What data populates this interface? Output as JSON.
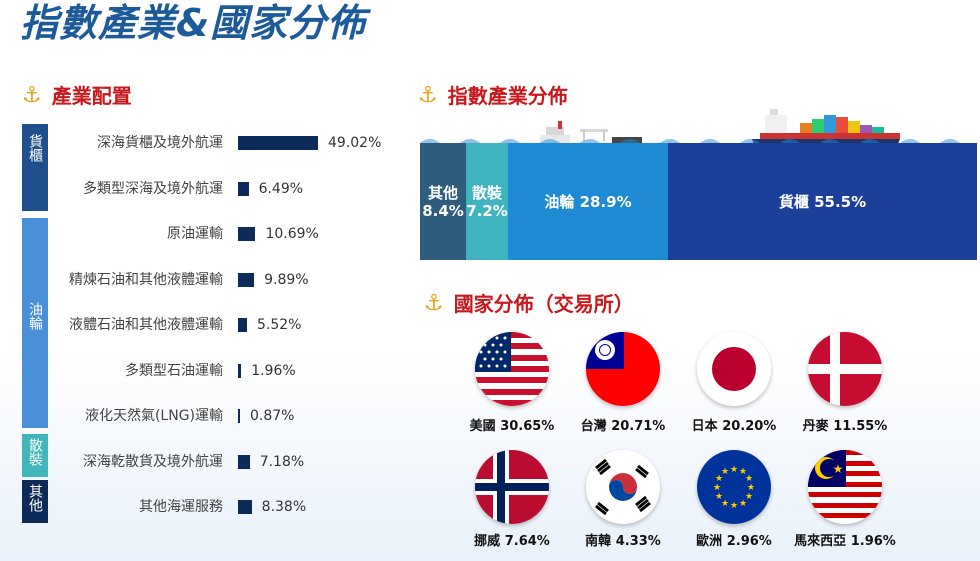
{
  "title": "指數產業&國家分佈",
  "industry_section": {
    "heading": "產業配置",
    "groups": [
      {
        "label": "貨櫃",
        "color": "#1f4f8c"
      },
      {
        "label": "油輪",
        "color": "#4a90d9"
      },
      {
        "label": "散裝",
        "color": "#40b5bc"
      },
      {
        "label": "其他",
        "color": "#0d2b59"
      }
    ],
    "rows": [
      {
        "label": "深海貨櫃及境外航運",
        "value": "49.02%",
        "pct": 49.02
      },
      {
        "label": "多類型深海及境外航運",
        "value": "6.49%",
        "pct": 6.49
      },
      {
        "label": "原油運輸",
        "value": "10.69%",
        "pct": 10.69
      },
      {
        "label": "精煉石油和其他液體運輸",
        "value": "9.89%",
        "pct": 9.89
      },
      {
        "label": "液體石油和其他液體運輸",
        "value": "5.52%",
        "pct": 5.52
      },
      {
        "label": "多類型石油運輸",
        "value": "1.96%",
        "pct": 1.96
      },
      {
        "label": "液化天然氣(LNG)運輸",
        "value": "0.87%",
        "pct": 0.87
      },
      {
        "label": "深海乾散貨及境外航運",
        "value": "7.18%",
        "pct": 7.18
      },
      {
        "label": "其他海運服務",
        "value": "8.38%",
        "pct": 8.38
      }
    ]
  },
  "index_section": {
    "heading": "指數產業分佈",
    "segments": [
      {
        "name": "其他",
        "value": "8.4%",
        "color": "#2f5d7e"
      },
      {
        "name": "散裝",
        "value": "7.2%",
        "color": "#3fb4bf"
      },
      {
        "name": "油輪",
        "value": "28.9%",
        "color": "#1f8ad4"
      },
      {
        "name": "貨櫃",
        "value": "55.5%",
        "color": "#1c3f99"
      }
    ]
  },
  "country_section": {
    "heading": "國家分佈（交易所）",
    "countries": [
      {
        "name": "美國",
        "value": "30.65%",
        "flag": "us-flag-icon"
      },
      {
        "name": "台灣",
        "value": "20.71%",
        "flag": "taiwan-flag-icon"
      },
      {
        "name": "日本",
        "value": "20.20%",
        "flag": "japan-flag-icon"
      },
      {
        "name": "丹麥",
        "value": "11.55%",
        "flag": "denmark-flag-icon"
      },
      {
        "name": "挪威",
        "value": "7.64%",
        "flag": "norway-flag-icon"
      },
      {
        "name": "南韓",
        "value": "4.33%",
        "flag": "korea-flag-icon"
      },
      {
        "name": "歐洲",
        "value": "2.96%",
        "flag": "eu-flag-icon"
      },
      {
        "name": "馬來西亞",
        "value": "1.96%",
        "flag": "malaysia-flag-icon"
      }
    ]
  },
  "colors": {
    "title": "#1d5a99",
    "heading": "#c8191f",
    "anchor": "#e5a11b",
    "bar": "#0d2b59"
  }
}
